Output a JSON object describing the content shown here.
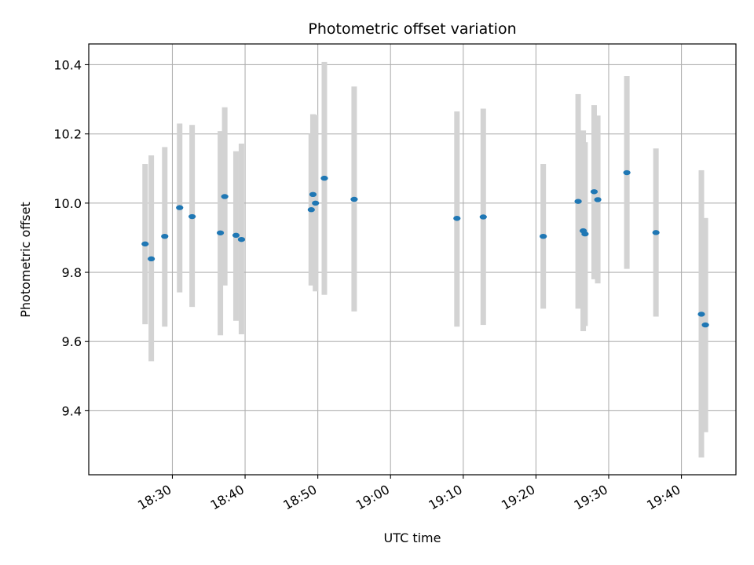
{
  "chart_data": {
    "type": "scatter",
    "title": "Photometric offset variation",
    "xlabel": "UTC time",
    "ylabel": "Photometric offset",
    "x_axis": {
      "kind": "time",
      "min": "18:18:30",
      "max": "19:47:30",
      "ticks": [
        "18:30",
        "18:40",
        "18:50",
        "19:00",
        "19:10",
        "19:20",
        "19:30",
        "19:40"
      ],
      "tick_rotation_deg": -30
    },
    "y_axis": {
      "min": 9.215,
      "max": 10.46,
      "ticks": [
        9.4,
        9.6,
        9.8,
        10.0,
        10.2,
        10.4
      ],
      "tick_labels": [
        "9.4",
        "9.6",
        "9.8",
        "10.0",
        "10.2",
        "10.4"
      ]
    },
    "grid": true,
    "colors": {
      "point": "#1f77b4",
      "errorbar": "#d3d3d3",
      "grid": "#b0b0b0",
      "axis": "#000000"
    },
    "points": [
      {
        "t": "18:26:15",
        "y": 9.882,
        "lo": 9.65,
        "hi": 10.113
      },
      {
        "t": "18:27:06",
        "y": 9.839,
        "lo": 9.543,
        "hi": 10.138
      },
      {
        "t": "18:28:57",
        "y": 9.904,
        "lo": 9.643,
        "hi": 10.162
      },
      {
        "t": "18:31:00",
        "y": 9.987,
        "lo": 9.742,
        "hi": 10.23
      },
      {
        "t": "18:32:43",
        "y": 9.961,
        "lo": 9.7,
        "hi": 10.226
      },
      {
        "t": "18:36:36",
        "y": 9.914,
        "lo": 9.618,
        "hi": 10.208
      },
      {
        "t": "18:37:12",
        "y": 10.019,
        "lo": 9.762,
        "hi": 10.277
      },
      {
        "t": "18:38:45",
        "y": 9.907,
        "lo": 9.66,
        "hi": 10.15
      },
      {
        "t": "18:39:30",
        "y": 9.895,
        "lo": 9.621,
        "hi": 10.172
      },
      {
        "t": "18:49:06",
        "y": 9.981,
        "lo": 9.762,
        "hi": 10.2
      },
      {
        "t": "18:49:20",
        "y": 10.025,
        "lo": 9.775,
        "hi": 10.257
      },
      {
        "t": "18:49:41",
        "y": 10.0,
        "lo": 9.745,
        "hi": 10.255
      },
      {
        "t": "18:50:54",
        "y": 10.072,
        "lo": 9.735,
        "hi": 10.408
      },
      {
        "t": "18:55:00",
        "y": 10.011,
        "lo": 9.687,
        "hi": 10.337
      },
      {
        "t": "19:09:08",
        "y": 9.956,
        "lo": 9.643,
        "hi": 10.265
      },
      {
        "t": "19:12:45",
        "y": 9.96,
        "lo": 9.648,
        "hi": 10.273
      },
      {
        "t": "19:21:00",
        "y": 9.904,
        "lo": 9.695,
        "hi": 10.113
      },
      {
        "t": "19:25:48",
        "y": 10.005,
        "lo": 9.695,
        "hi": 10.315
      },
      {
        "t": "19:26:30",
        "y": 9.92,
        "lo": 9.63,
        "hi": 10.21
      },
      {
        "t": "19:26:45",
        "y": 9.911,
        "lo": 9.645,
        "hi": 10.176
      },
      {
        "t": "19:28:00",
        "y": 10.033,
        "lo": 9.78,
        "hi": 10.283
      },
      {
        "t": "19:28:30",
        "y": 10.01,
        "lo": 9.768,
        "hi": 10.253
      },
      {
        "t": "19:32:30",
        "y": 10.088,
        "lo": 9.81,
        "hi": 10.367
      },
      {
        "t": "19:36:30",
        "y": 9.915,
        "lo": 9.672,
        "hi": 10.158
      },
      {
        "t": "19:42:45",
        "y": 9.679,
        "lo": 9.265,
        "hi": 10.095
      },
      {
        "t": "19:43:18",
        "y": 9.648,
        "lo": 9.338,
        "hi": 9.957
      }
    ]
  }
}
